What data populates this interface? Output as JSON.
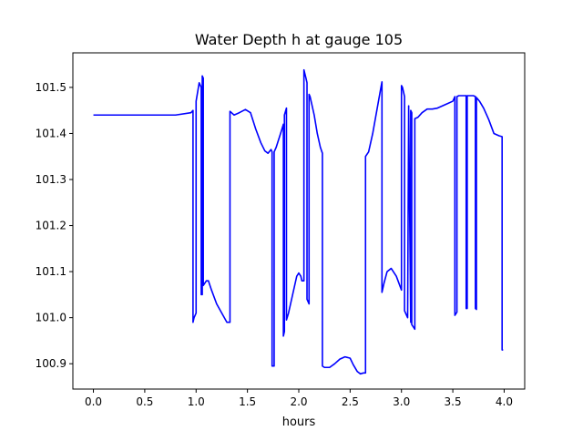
{
  "chart_data": {
    "type": "line",
    "title": "Water Depth h at gauge 105",
    "xlabel": "hours",
    "ylabel": "",
    "xlim": [
      -0.2,
      4.2
    ],
    "ylim": [
      100.845,
      101.575
    ],
    "xticks": [
      0.0,
      0.5,
      1.0,
      1.5,
      2.0,
      2.5,
      3.0,
      3.5,
      4.0
    ],
    "xtick_labels": [
      "0.0",
      "0.5",
      "1.0",
      "1.5",
      "2.0",
      "2.5",
      "3.0",
      "3.5",
      "4.0"
    ],
    "yticks": [
      100.9,
      101.0,
      101.1,
      101.2,
      101.3,
      101.4,
      101.5
    ],
    "ytick_labels": [
      "100.9",
      "101.0",
      "101.1",
      "101.2",
      "101.3",
      "101.4",
      "101.5"
    ],
    "grid": false,
    "series": [
      {
        "color": "#0000ff",
        "x": [
          0.0,
          0.4,
          0.8,
          0.95,
          0.97,
          0.97,
          0.98,
          1.0,
          1.0,
          1.03,
          1.05,
          1.05,
          1.06,
          1.06,
          1.07,
          1.07,
          1.1,
          1.12,
          1.15,
          1.2,
          1.25,
          1.3,
          1.33,
          1.33,
          1.37,
          1.42,
          1.48,
          1.53,
          1.58,
          1.63,
          1.67,
          1.7,
          1.73,
          1.74,
          1.74,
          1.76,
          1.76,
          1.78,
          1.83,
          1.85,
          1.85,
          1.86,
          1.86,
          1.88,
          1.88,
          1.9,
          1.94,
          1.98,
          2.0,
          2.02,
          2.03,
          2.05,
          2.05,
          2.07,
          2.08,
          2.08,
          2.1,
          2.1,
          2.11,
          2.15,
          2.18,
          2.21,
          2.23,
          2.23,
          2.25,
          2.3,
          2.35,
          2.4,
          2.45,
          2.5,
          2.53,
          2.57,
          2.6,
          2.63,
          2.65,
          2.65,
          2.68,
          2.72,
          2.76,
          2.8,
          2.81,
          2.81,
          2.83,
          2.86,
          2.9,
          2.95,
          3.0,
          3.0,
          3.01,
          3.03,
          3.03,
          3.05,
          3.06,
          3.07,
          3.07,
          3.09,
          3.09,
          3.1,
          3.1,
          3.13,
          3.13,
          3.16,
          3.2,
          3.25,
          3.3,
          3.35,
          3.4,
          3.45,
          3.5,
          3.52,
          3.52,
          3.54,
          3.54,
          3.56,
          3.6,
          3.63,
          3.63,
          3.64,
          3.64,
          3.66,
          3.7,
          3.72,
          3.72,
          3.73,
          3.73,
          3.76,
          3.8,
          3.85,
          3.9,
          3.95,
          3.98,
          3.98,
          3.99
        ],
        "y": [
          101.44,
          101.44,
          101.44,
          101.445,
          101.45,
          100.99,
          101.0,
          101.01,
          101.47,
          101.51,
          101.5,
          101.05,
          101.05,
          101.525,
          101.52,
          101.07,
          101.08,
          101.08,
          101.06,
          101.03,
          101.01,
          100.99,
          100.99,
          101.448,
          101.44,
          101.445,
          101.452,
          101.445,
          101.41,
          101.38,
          101.362,
          101.357,
          101.365,
          101.36,
          100.895,
          100.895,
          101.36,
          101.37,
          101.405,
          101.42,
          100.96,
          100.97,
          101.44,
          101.455,
          100.995,
          101.01,
          101.05,
          101.09,
          101.097,
          101.09,
          101.08,
          101.08,
          101.538,
          101.52,
          101.51,
          101.04,
          101.03,
          101.485,
          101.48,
          101.44,
          101.4,
          101.37,
          101.357,
          100.895,
          100.892,
          100.892,
          100.9,
          100.91,
          100.915,
          100.912,
          100.898,
          100.883,
          100.878,
          100.88,
          100.88,
          101.35,
          101.36,
          101.4,
          101.45,
          101.5,
          101.512,
          101.055,
          101.075,
          101.1,
          101.107,
          101.09,
          101.06,
          101.504,
          101.5,
          101.48,
          101.015,
          101.005,
          101.0,
          101.46,
          101.455,
          100.99,
          101.45,
          101.445,
          100.985,
          100.975,
          101.432,
          101.435,
          101.445,
          101.453,
          101.453,
          101.455,
          101.46,
          101.465,
          101.47,
          101.48,
          101.005,
          101.012,
          101.48,
          101.482,
          101.482,
          101.482,
          101.02,
          101.02,
          101.482,
          101.482,
          101.482,
          101.48,
          101.02,
          101.018,
          101.478,
          101.47,
          101.455,
          101.43,
          101.4,
          101.395,
          101.393,
          100.93,
          100.93
        ]
      }
    ]
  }
}
